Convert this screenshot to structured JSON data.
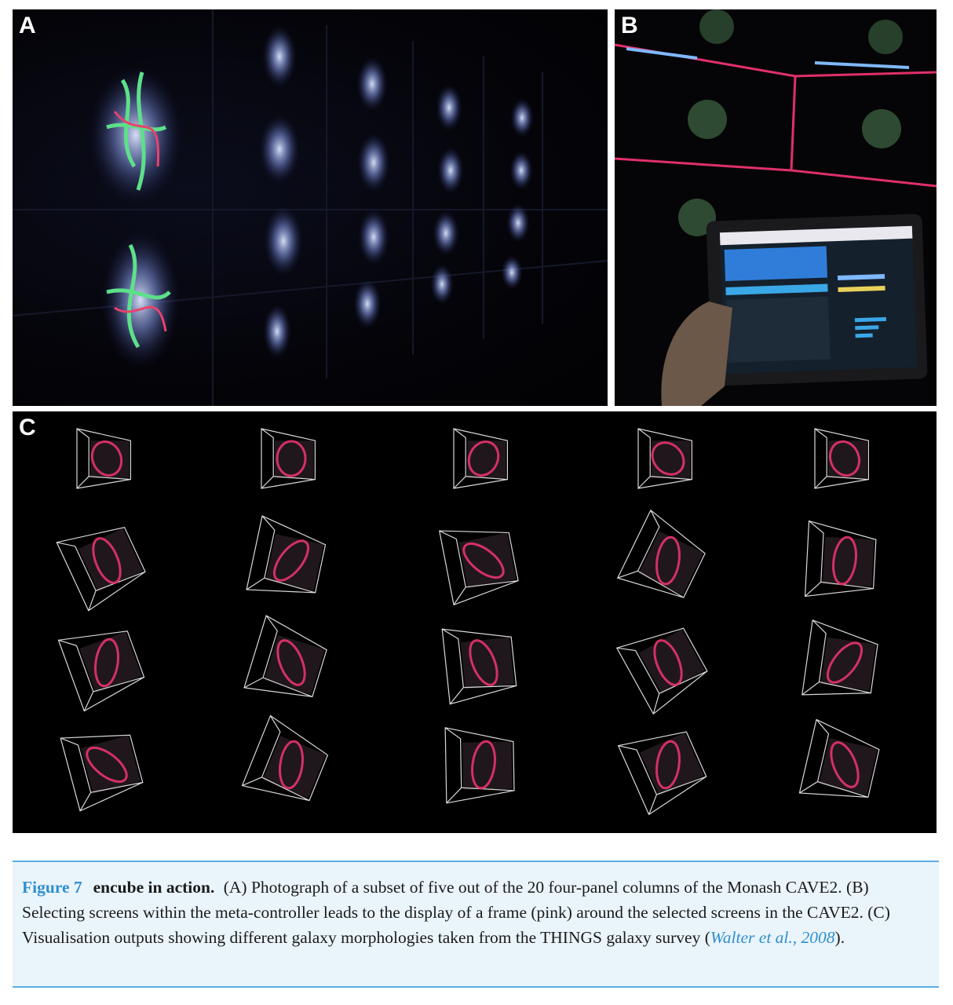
{
  "panels": {
    "a_label": "A",
    "b_label": "B",
    "c_label": "C"
  },
  "caption": {
    "figure_number": "Figure 7",
    "title": "encube in action.",
    "text_before_citation": "(A) Photograph of a subset of five out of the 20 four-panel columns of the Monash CAVE2. (B) Selecting screens within the meta-controller leads to the display of a frame (pink) around the selected screens in the CAVE2. (C) Visualisation outputs showing different galaxy morphologies taken from the THINGS galaxy survey (",
    "citation": "Walter et al., 2008",
    "text_after_citation": ")."
  },
  "colors": {
    "accent": "#2f8fcf",
    "frame_pink": "#e0306a",
    "galaxy_pink": "#e8336e"
  }
}
